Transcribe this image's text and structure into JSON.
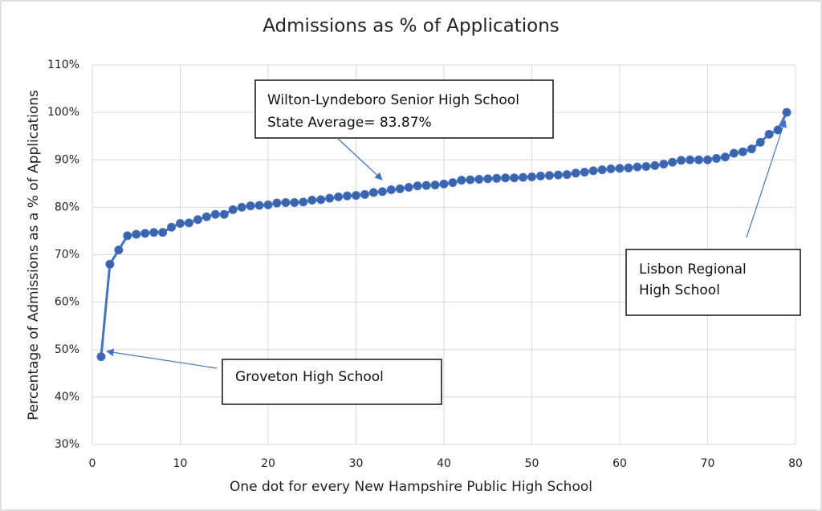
{
  "chart_data": {
    "type": "line",
    "title": "Admissions as % of Applications",
    "x_label": "One dot for every New Hampshire Public High School",
    "y_label": "Percentage of Admissions as a % of Applications",
    "x": [
      1,
      2,
      3,
      4,
      5,
      6,
      7,
      8,
      9,
      10,
      11,
      12,
      13,
      14,
      15,
      16,
      17,
      18,
      19,
      20,
      21,
      22,
      23,
      24,
      25,
      26,
      27,
      28,
      29,
      30,
      31,
      32,
      33,
      34,
      35,
      36,
      37,
      38,
      39,
      40,
      41,
      42,
      43,
      44,
      45,
      46,
      47,
      48,
      49,
      50,
      51,
      52,
      53,
      54,
      55,
      56,
      57,
      58,
      59,
      60,
      61,
      62,
      63,
      64,
      65,
      66,
      67,
      68,
      69,
      70,
      71,
      72,
      73,
      74,
      75,
      76,
      77,
      78,
      79
    ],
    "series": [
      {
        "color": "#4472c4",
        "values": [
          48.5,
          68,
          71,
          74,
          74.3,
          74.5,
          74.7,
          74.7,
          75.8,
          76.6,
          76.7,
          77.4,
          78,
          78.5,
          78.5,
          79.5,
          80,
          80.3,
          80.4,
          80.5,
          80.9,
          81,
          81,
          81.1,
          81.5,
          81.6,
          81.9,
          82.2,
          82.4,
          82.5,
          82.7,
          83.1,
          83.3,
          83.7,
          83.9,
          84.2,
          84.5,
          84.6,
          84.7,
          84.9,
          85.2,
          85.7,
          85.8,
          85.9,
          86,
          86.1,
          86.2,
          86.2,
          86.3,
          86.4,
          86.6,
          86.7,
          86.8,
          86.9,
          87.2,
          87.4,
          87.7,
          87.9,
          88.1,
          88.2,
          88.3,
          88.5,
          88.6,
          88.8,
          89.1,
          89.5,
          89.9,
          90,
          90,
          90,
          90.3,
          90.6,
          91.4,
          91.7,
          92.3,
          93.7,
          95.4,
          96.3,
          100
        ]
      }
    ],
    "xlim": [
      0,
      80
    ],
    "xticks": [
      0,
      10,
      20,
      30,
      40,
      50,
      60,
      70,
      80
    ],
    "ylim": [
      30,
      110
    ],
    "yticks": [
      {
        "value": 30,
        "label": "30%"
      },
      {
        "value": 40,
        "label": "40%"
      },
      {
        "value": 50,
        "label": "50%"
      },
      {
        "value": 60,
        "label": "60%"
      },
      {
        "value": 70,
        "label": "70%"
      },
      {
        "value": 80,
        "label": "80%"
      },
      {
        "value": 90,
        "label": "90%"
      },
      {
        "value": 100,
        "label": "100%"
      },
      {
        "value": 110,
        "label": "110%"
      }
    ],
    "grid": true,
    "annotations": [
      [
        "Wilton-Lyndeboro Senior High School",
        "State Average= 83.87%"
      ],
      [
        "Groveton High School"
      ],
      [
        "Lisbon Regional",
        "High School"
      ]
    ]
  }
}
